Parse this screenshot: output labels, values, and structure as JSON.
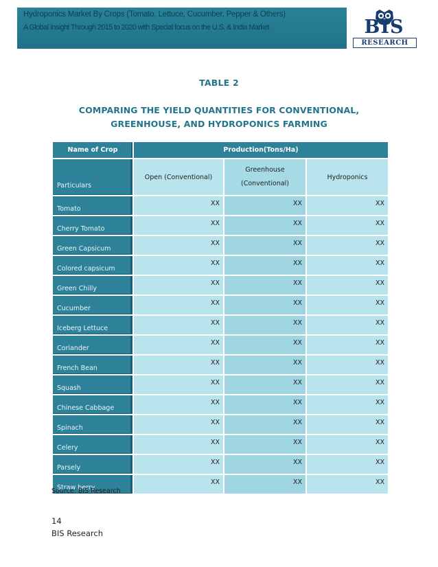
{
  "header": {
    "line1": "Hydroponics Market By Crops (Tomato, Lettuce, Cucumber, Pepper & Others)",
    "line2": "A Global Insight Through 2015 to 2020 with Special focus on the U.S. & India Market",
    "logo_main": "BIS",
    "logo_sub": "RESEARCH"
  },
  "table_label": "TABLE 2",
  "title_line1": "COMPARING THE YIELD QUANTITIES FOR CONVENTIONAL,",
  "title_line2": "GREENHOUSE, AND HYDROPONICS FARMING",
  "table": {
    "header_crop": "Name of Crop",
    "header_production": "Production(Tons/Ha)",
    "particulars": "Particulars",
    "col_open": "Open (Conventional)",
    "col_greenhouse_1": "Greenhouse",
    "col_greenhouse_2": "(Conventional)",
    "col_hydro": "Hydroponics",
    "rows": [
      {
        "crop": "Tomato",
        "open": "XX",
        "greenhouse": "XX",
        "hydro": "XX"
      },
      {
        "crop": "Cherry Tomato",
        "open": "XX",
        "greenhouse": "XX",
        "hydro": "XX"
      },
      {
        "crop": "Green Capsicum",
        "open": "XX",
        "greenhouse": "XX",
        "hydro": "XX"
      },
      {
        "crop": "Colored capsicum",
        "open": "XX",
        "greenhouse": "XX",
        "hydro": "XX"
      },
      {
        "crop": "Green Chilly",
        "open": "XX",
        "greenhouse": "XX",
        "hydro": "XX"
      },
      {
        "crop": "Cucumber",
        "open": "XX",
        "greenhouse": "XX",
        "hydro": "XX"
      },
      {
        "crop": "Iceberg Lettuce",
        "open": "XX",
        "greenhouse": "XX",
        "hydro": "XX"
      },
      {
        "crop": "Coriander",
        "open": "XX",
        "greenhouse": "XX",
        "hydro": "XX"
      },
      {
        "crop": "French Bean",
        "open": "XX",
        "greenhouse": "XX",
        "hydro": "XX"
      },
      {
        "crop": "Squash",
        "open": "XX",
        "greenhouse": "XX",
        "hydro": "XX"
      },
      {
        "crop": "Chinese Cabbage",
        "open": "XX",
        "greenhouse": "XX",
        "hydro": "XX"
      },
      {
        "crop": "Spinach",
        "open": "XX",
        "greenhouse": "XX",
        "hydro": "XX"
      },
      {
        "crop": "Celery",
        "open": "XX",
        "greenhouse": "XX",
        "hydro": "XX"
      },
      {
        "crop": "Parsely",
        "open": "XX",
        "greenhouse": "XX",
        "hydro": "XX"
      },
      {
        "crop": "Straw berry",
        "open": "XX",
        "greenhouse": "XX",
        "hydro": "XX"
      }
    ]
  },
  "source": "Source: BIS Research",
  "footer": {
    "page_number": "14",
    "brand": "BIS Research"
  },
  "colors": {
    "banner": "#237a91",
    "title": "#24748b",
    "cell_light": "#b9e4ee",
    "cell_mid": "#9fd5e1",
    "logo": "#173c6d"
  }
}
